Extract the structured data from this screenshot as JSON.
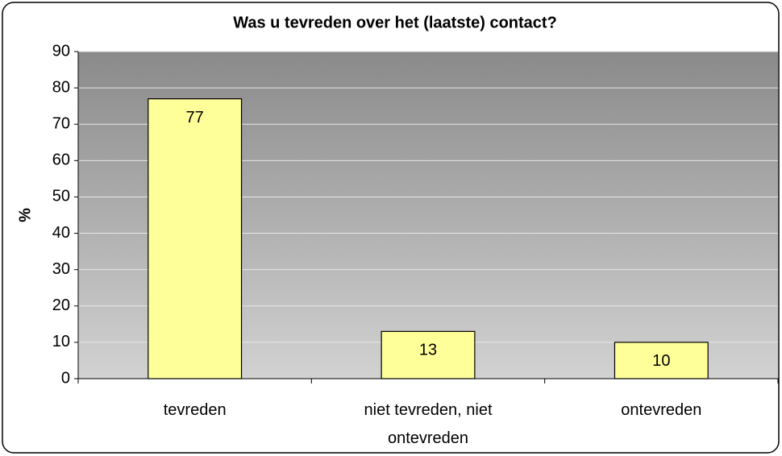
{
  "chart_data": {
    "type": "bar",
    "title": "Was u tevreden over het (laatste) contact?",
    "y_label": "%",
    "categories": [
      "tevreden",
      "niet tevreden, niet ontevreden",
      "ontevreden"
    ],
    "values": [
      77,
      13,
      10
    ],
    "color": "#ffff99",
    "ylim": [
      0,
      90
    ],
    "yticks": [
      0,
      10,
      20,
      30,
      40,
      50,
      60,
      70,
      80,
      90
    ],
    "grid": true
  }
}
